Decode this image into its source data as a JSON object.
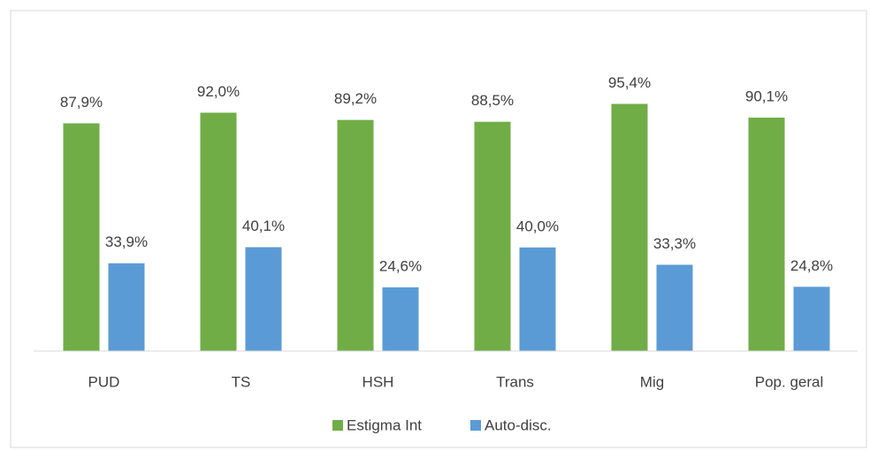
{
  "chart_data": {
    "type": "bar",
    "categories": [
      "PUD",
      "TS",
      "HSH",
      "Trans",
      "Mig",
      "Pop. geral"
    ],
    "series": [
      {
        "name": "Estigma Int",
        "color": "#70ad47",
        "values": [
          87.9,
          92.0,
          89.2,
          88.5,
          95.4,
          90.1
        ],
        "value_labels": [
          "87,9%",
          "92,0%",
          "89,2%",
          "88,5%",
          "95,4%",
          "90,1%"
        ]
      },
      {
        "name": "Auto-disc.",
        "color": "#5b9bd5",
        "values": [
          33.9,
          40.1,
          24.6,
          40.0,
          33.3,
          24.8
        ],
        "value_labels": [
          "33,9%",
          "40,1%",
          "24,6%",
          "40,0%",
          "33,3%",
          "24,8%"
        ]
      }
    ],
    "ylim": [
      0,
      100
    ],
    "legend": "bottom"
  }
}
